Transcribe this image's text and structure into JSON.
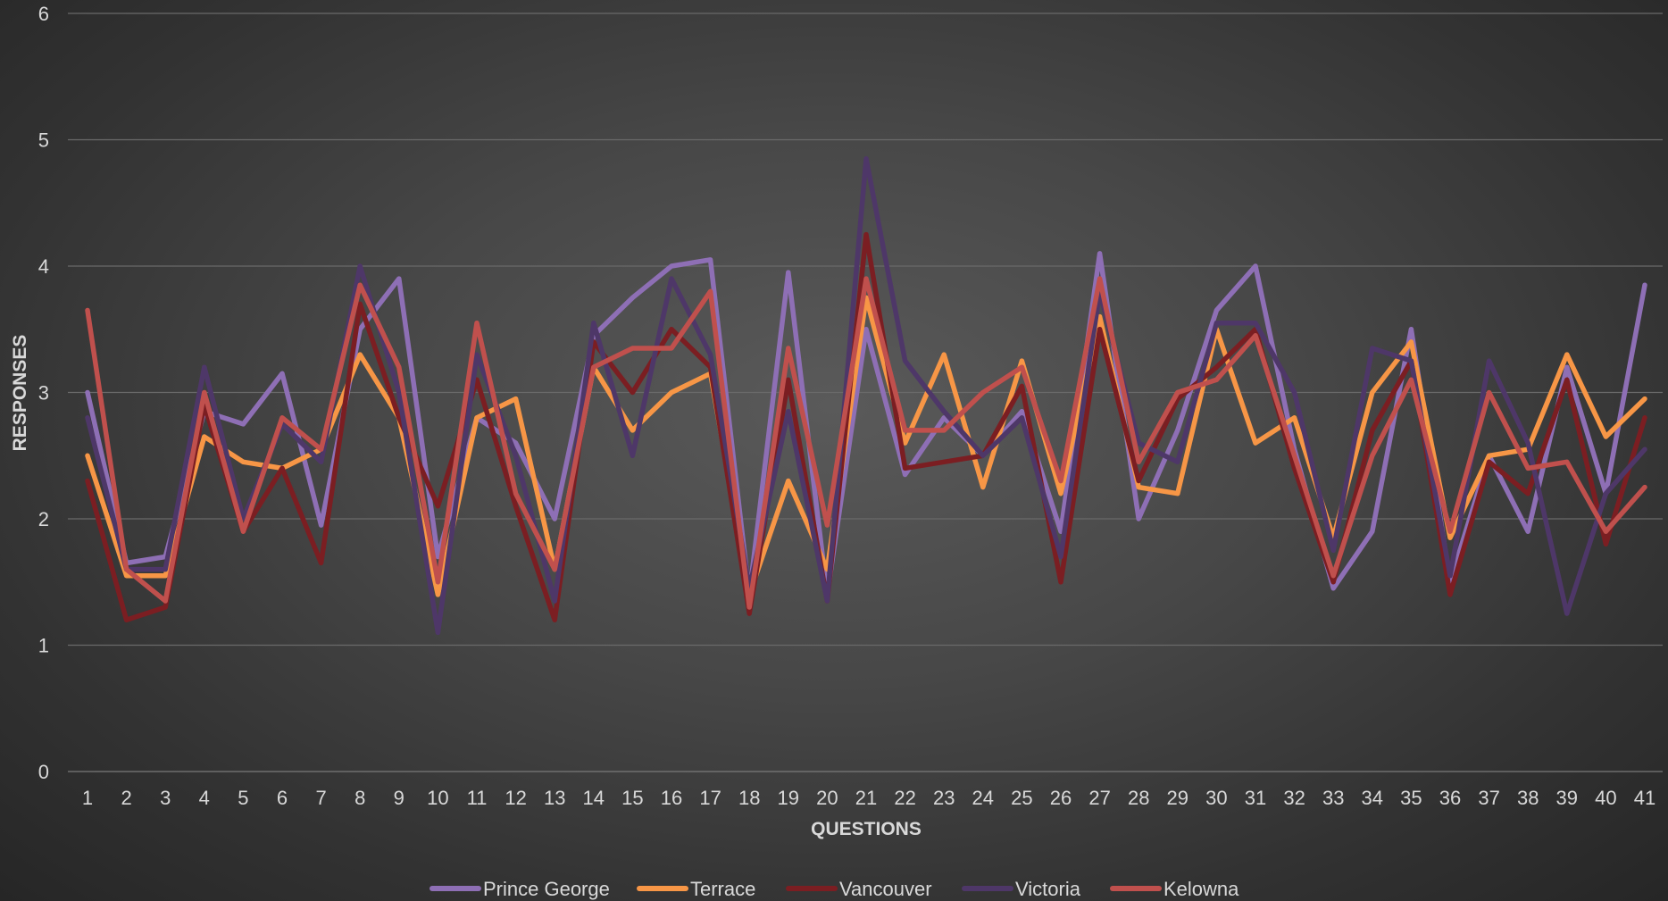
{
  "chart_data": {
    "type": "line",
    "xlabel": "QUESTIONS",
    "ylabel": "RESPONSES",
    "ylim": [
      0,
      6
    ],
    "yticks": [
      "0",
      "1",
      "2",
      "3",
      "4",
      "5",
      "6"
    ],
    "grid": true,
    "legend_position": "bottom",
    "categories": [
      "1",
      "2",
      "3",
      "4",
      "5",
      "6",
      "7",
      "8",
      "9",
      "10",
      "11",
      "12",
      "13",
      "14",
      "15",
      "16",
      "17",
      "18",
      "19",
      "20",
      "21",
      "22",
      "23",
      "24",
      "25",
      "26",
      "27",
      "28",
      "29",
      "30",
      "31",
      "32",
      "33",
      "34",
      "35",
      "36",
      "37",
      "38",
      "39",
      "40",
      "41"
    ],
    "series": [
      {
        "name": "Prince George",
        "color": "#8e6fb5",
        "values": [
          3.0,
          1.65,
          1.7,
          2.85,
          2.75,
          3.15,
          1.95,
          3.5,
          3.9,
          1.7,
          2.8,
          2.6,
          2.0,
          3.45,
          3.75,
          4.0,
          4.05,
          1.4,
          3.95,
          1.4,
          3.5,
          2.35,
          2.8,
          2.5,
          2.85,
          1.9,
          4.1,
          2.0,
          2.7,
          3.65,
          4.0,
          2.55,
          1.45,
          1.9,
          3.5,
          1.5,
          2.5,
          1.9,
          3.2,
          2.2,
          3.85
        ]
      },
      {
        "name": "Terrace",
        "color": "#f79646",
        "values": [
          2.5,
          1.55,
          1.55,
          2.65,
          2.45,
          2.4,
          2.55,
          3.3,
          2.8,
          1.4,
          2.8,
          2.95,
          1.6,
          3.2,
          2.7,
          3.0,
          3.15,
          1.4,
          2.3,
          1.6,
          3.75,
          2.6,
          3.3,
          2.25,
          3.25,
          2.2,
          3.6,
          2.25,
          2.2,
          3.5,
          2.6,
          2.8,
          1.85,
          3.0,
          3.4,
          1.85,
          2.5,
          2.55,
          3.3,
          2.65,
          2.95
        ]
      },
      {
        "name": "Vancouver",
        "color": "#7b1e22",
        "values": [
          2.3,
          1.2,
          1.3,
          2.9,
          1.9,
          2.4,
          1.65,
          3.7,
          2.8,
          2.1,
          3.1,
          2.1,
          1.2,
          3.4,
          3.0,
          3.5,
          3.2,
          1.25,
          3.1,
          1.35,
          4.25,
          2.4,
          2.45,
          2.5,
          3.05,
          1.5,
          3.5,
          2.3,
          2.95,
          3.2,
          3.5,
          2.4,
          1.5,
          2.7,
          3.25,
          1.4,
          2.45,
          2.2,
          3.1,
          1.8,
          2.8
        ]
      },
      {
        "name": "Victoria",
        "color": "#4e3768",
        "values": [
          2.8,
          1.6,
          1.6,
          3.2,
          2.0,
          2.75,
          2.45,
          4.0,
          3.0,
          1.1,
          3.3,
          2.5,
          1.35,
          3.55,
          2.5,
          3.9,
          3.3,
          1.45,
          2.85,
          1.35,
          4.85,
          3.25,
          2.85,
          2.5,
          2.8,
          1.7,
          3.8,
          2.6,
          2.45,
          3.55,
          3.55,
          3.0,
          1.75,
          3.35,
          3.25,
          1.55,
          3.25,
          2.6,
          1.25,
          2.2,
          2.55
        ]
      },
      {
        "name": "Kelowna",
        "color": "#c0504d",
        "values": [
          3.65,
          1.6,
          1.35,
          3.0,
          1.9,
          2.8,
          2.55,
          3.85,
          3.2,
          1.5,
          3.55,
          2.2,
          1.6,
          3.2,
          3.35,
          3.35,
          3.8,
          1.3,
          3.35,
          1.95,
          3.9,
          2.7,
          2.7,
          3.0,
          3.2,
          2.3,
          3.9,
          2.45,
          3.0,
          3.1,
          3.45,
          2.5,
          1.55,
          2.5,
          3.1,
          1.9,
          3.0,
          2.4,
          2.45,
          1.9,
          2.25
        ]
      }
    ]
  }
}
